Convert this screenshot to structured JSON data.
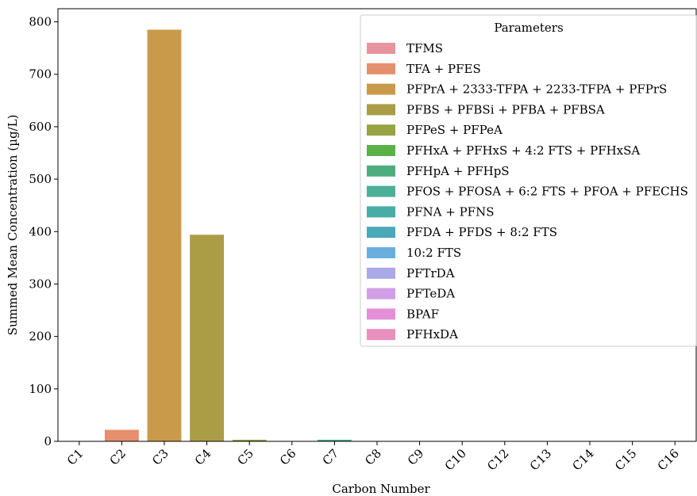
{
  "chart_data": {
    "type": "bar",
    "title": "",
    "xlabel": "Carbon Number",
    "ylabel": "Summed Mean Concentration (µg/L)",
    "ylim": [
      0,
      825
    ],
    "yticks": [
      0,
      100,
      200,
      300,
      400,
      500,
      600,
      700,
      800
    ],
    "categories": [
      "C1",
      "C2",
      "C3",
      "C4",
      "C5",
      "C6",
      "C7",
      "C8",
      "C9",
      "C10",
      "C12",
      "C13",
      "C14",
      "C15",
      "C16"
    ],
    "values": [
      0,
      22,
      785,
      394,
      3,
      0,
      3,
      0,
      0,
      0,
      0,
      0,
      0,
      0,
      0
    ],
    "bar_colors": [
      "#e8949e",
      "#e68f6c",
      "#c99a4a",
      "#ab9d46",
      "#98a443",
      "#5ab148",
      "#4ead7e",
      "#4caf98",
      "#48ada6",
      "#4aa9b8",
      "#6aaee0",
      "#a9a8e8",
      "#d29ee6",
      "#e58fd9",
      "#e98fbd"
    ],
    "grid": false,
    "legend": {
      "title": "Parameters",
      "placement": "upper right",
      "entries": [
        {
          "label": "TFMS",
          "color": "#e8949e"
        },
        {
          "label": "TFA + PFES",
          "color": "#e68f6c"
        },
        {
          "label": "PFPrA + 2333-TFPA + 2233-TFPA + PFPrS",
          "color": "#c99a4a"
        },
        {
          "label": "PFBS + PFBSi + PFBA + PFBSA",
          "color": "#ab9d46"
        },
        {
          "label": "PFPeS + PFPeA",
          "color": "#98a443"
        },
        {
          "label": "PFHxA + PFHxS + 4:2 FTS + PFHxSA",
          "color": "#5ab148"
        },
        {
          "label": "PFHpA + PFHpS",
          "color": "#4ead7e"
        },
        {
          "label": "PFOS + PFOSA + 6:2 FTS + PFOA + PFECHS",
          "color": "#4caf98"
        },
        {
          "label": "PFNA + PFNS",
          "color": "#48ada6"
        },
        {
          "label": "PFDA + PFDS + 8:2 FTS",
          "color": "#4aa9b8"
        },
        {
          "label": "10:2 FTS",
          "color": "#6aaee0"
        },
        {
          "label": "PFTrDA",
          "color": "#a9a8e8"
        },
        {
          "label": "PFTeDA",
          "color": "#d29ee6"
        },
        {
          "label": "BPAF",
          "color": "#e58fd9"
        },
        {
          "label": "PFHxDA",
          "color": "#e98fbd"
        }
      ]
    }
  }
}
